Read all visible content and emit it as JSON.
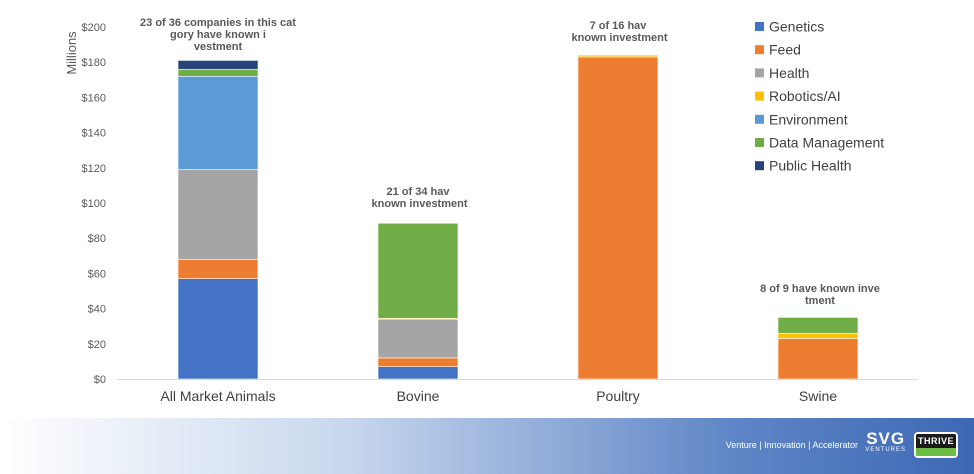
{
  "chart_data": {
    "type": "bar",
    "stacked": true,
    "ylabel": "Millions",
    "ylim": [
      0,
      200
    ],
    "ytick_step": 20,
    "ytick_prefix": "$",
    "grid": false,
    "legend_position": "right",
    "categories": [
      "All Market Animals",
      "Bovine",
      "Poultry",
      "Swine"
    ],
    "series": [
      {
        "name": "Genetics",
        "color": "#4472c4",
        "values": [
          57,
          7,
          0,
          0
        ]
      },
      {
        "name": "Feed",
        "color": "#ed7d31",
        "values": [
          11,
          5,
          183,
          23
        ]
      },
      {
        "name": "Health",
        "color": "#a5a5a5",
        "values": [
          51,
          22,
          0,
          0
        ]
      },
      {
        "name": "Robotics/AI",
        "color": "#ffc000",
        "values": [
          0,
          0.5,
          1,
          3
        ]
      },
      {
        "name": "Environment",
        "color": "#5b9bd5",
        "values": [
          53,
          0,
          0,
          0
        ]
      },
      {
        "name": "Data Management",
        "color": "#70ad47",
        "values": [
          4,
          54,
          0,
          9
        ]
      },
      {
        "name": "Public Health",
        "color": "#264478",
        "values": [
          5,
          0,
          0,
          0
        ]
      }
    ],
    "annotations": [
      "23 of 36 companies in this category have known investment",
      "21 of 34 have known investment",
      "7 of 16 have known investment",
      "8 of 9 have known investment"
    ]
  },
  "footer": {
    "tagline": "Venture | Innovation | Accelerator",
    "logo_main": "SVG",
    "logo_sub": "VENTURES",
    "partner_logo": "THRIVE"
  }
}
